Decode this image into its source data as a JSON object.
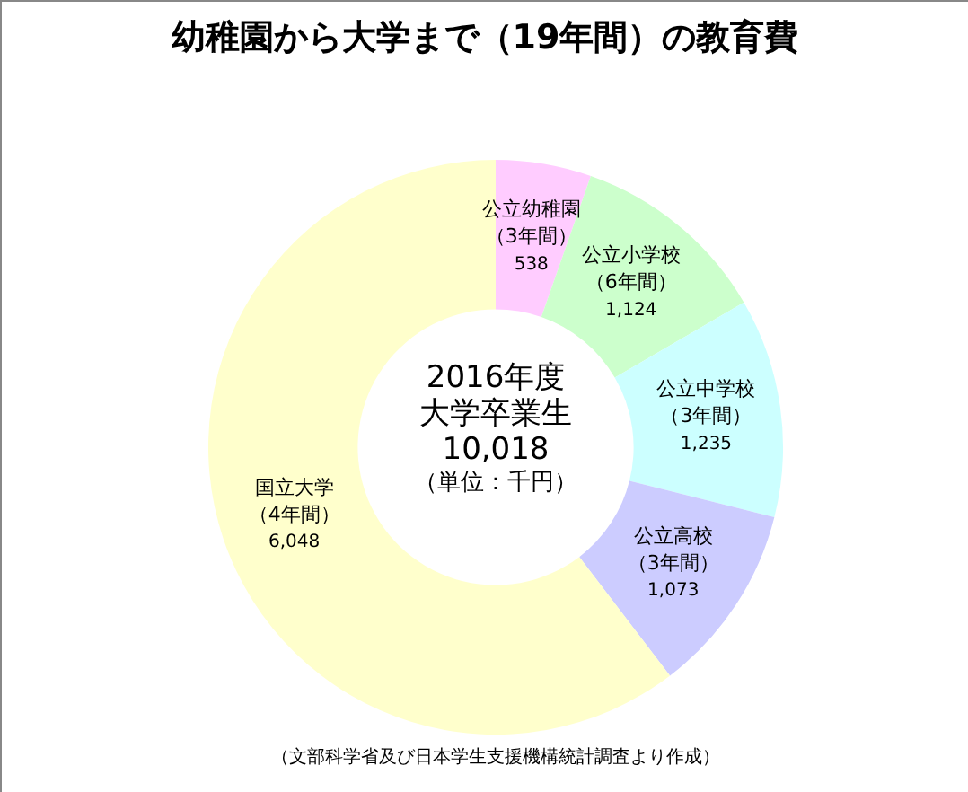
{
  "chart_data": {
    "type": "donut",
    "title": "幼稚園から大学まで（19年間）の教育費",
    "categories": [
      "公立幼稚園（3年間）",
      "公立小学校（6年間）",
      "公立中学校（3年間）",
      "公立高校（3年間）",
      "国立大学（4年間）"
    ],
    "values": [
      538,
      1124,
      1235,
      1073,
      6048
    ],
    "value_labels": [
      "538",
      "1,124",
      "1,235",
      "1,073",
      "6,048"
    ],
    "colors": [
      "#ffccff",
      "#ccffcc",
      "#ccffff",
      "#ccccff",
      "#ffffcc"
    ],
    "annotations": [
      "2016年度",
      "大学卒業生",
      "10,018",
      "（単位：千円）",
      "（文部科学省及び日本学生支援機構統計調査より作成）"
    ]
  }
}
